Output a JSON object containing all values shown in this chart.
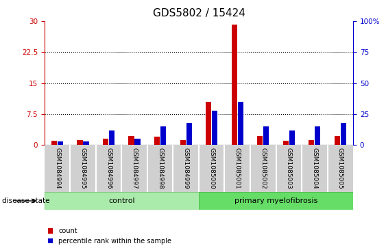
{
  "title": "GDS5802 / 15424",
  "samples": [
    "GSM1084994",
    "GSM1084995",
    "GSM1084996",
    "GSM1084997",
    "GSM1084998",
    "GSM1084999",
    "GSM1085000",
    "GSM1085001",
    "GSM1085002",
    "GSM1085003",
    "GSM1085004",
    "GSM1085005"
  ],
  "count_values": [
    1.0,
    1.2,
    1.5,
    2.2,
    2.0,
    1.2,
    10.5,
    29.2,
    2.2,
    1.0,
    1.2,
    2.2
  ],
  "percentile_values": [
    3.0,
    3.0,
    12.0,
    5.0,
    15.0,
    18.0,
    28.0,
    35.0,
    15.0,
    12.0,
    15.0,
    18.0
  ],
  "ylim_left": [
    0,
    30
  ],
  "ylim_right": [
    0,
    100
  ],
  "yticks_left": [
    0,
    7.5,
    15,
    22.5,
    30
  ],
  "yticks_right": [
    0,
    25,
    50,
    75,
    100
  ],
  "control_samples": 6,
  "groups": [
    "control",
    "primary myelofibrosis"
  ],
  "bar_bg_color": "#D0D0D0",
  "plot_bg_color": "#FFFFFF",
  "count_color": "#CC0000",
  "percentile_color": "#0000CC",
  "legend_count_label": "count",
  "legend_percentile_label": "percentile rank within the sample",
  "disease_state_label": "disease state",
  "title_fontsize": 11,
  "tick_fontsize": 7.5,
  "bar_label_fontsize": 6.5
}
